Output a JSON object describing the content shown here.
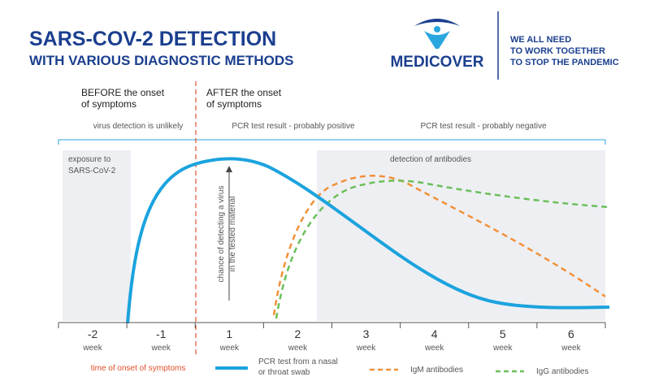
{
  "header": {
    "title_lines": [
      "SARS-COV-2 DETECTION",
      "WITH VARIOUS DIAGNOSTIC METHODS"
    ],
    "brand": "MEDICOVER",
    "slogan_lines": [
      "WE ALL NEED",
      "TO WORK TOGETHER",
      "TO STOP THE PANDEMIC"
    ]
  },
  "phases": {
    "before": [
      "BEFORE the onset",
      "of symptoms"
    ],
    "after": [
      "AFTER the onset",
      "of symptoms"
    ]
  },
  "bands": [
    "virus detection is unlikely",
    "PCR test result - probably positive",
    "PCR test result - probably negative"
  ],
  "regions": {
    "exposure": [
      "exposure to",
      "SARS-CoV-2"
    ],
    "antibodies": "detection of antibodies"
  },
  "vertical_note": [
    "chance of detecting a virus",
    "in the tested material"
  ],
  "weeks": [
    {
      "number": "-2",
      "unit": "week"
    },
    {
      "number": "-1",
      "unit": "week"
    },
    {
      "number": "1",
      "unit": "week"
    },
    {
      "number": "2",
      "unit": "week"
    },
    {
      "number": "3",
      "unit": "week"
    },
    {
      "number": "4",
      "unit": "week"
    },
    {
      "number": "5",
      "unit": "week"
    },
    {
      "number": "6",
      "unit": "week"
    }
  ],
  "legend": {
    "onset": "time of onset of symptoms",
    "pcr": [
      "PCR test from a nasal",
      "or throat swab"
    ],
    "igm": "IgM antibodies",
    "igg": "IgG antibodies"
  }
}
